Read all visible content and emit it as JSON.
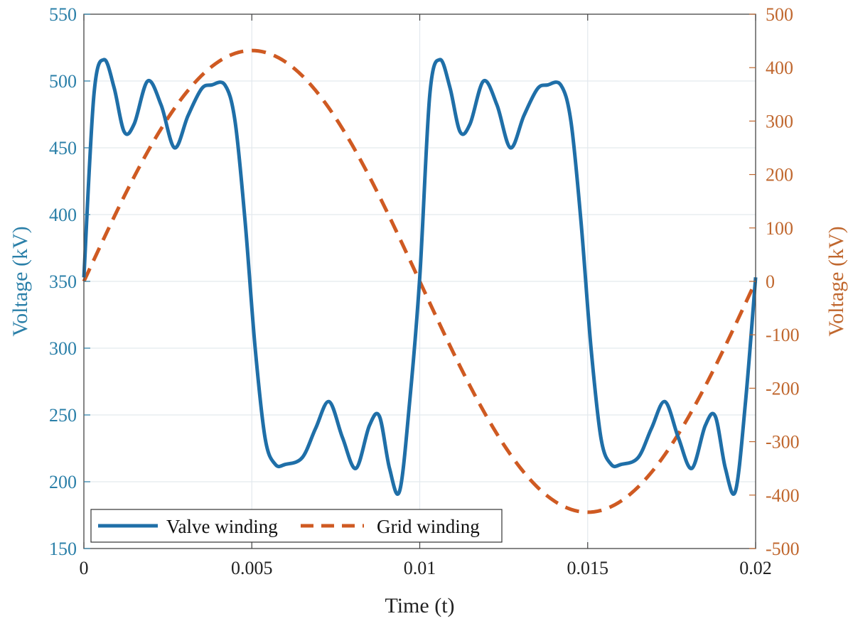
{
  "colors": {
    "left_axis": "#2a7fa8",
    "right_axis": "#c0672e",
    "valve_line": "#1f6fa8",
    "grid_line": "#cf5a22",
    "gridlines": "#e3e9ee",
    "frame": "#444444"
  },
  "chart_data": {
    "type": "line",
    "xlabel": "Time (t)",
    "ylabel_left": "Voltage (kV)",
    "ylabel_right": "Voltage (kV)",
    "xlim": [
      0,
      0.02
    ],
    "ylim_left": [
      150,
      550
    ],
    "ylim_right": [
      -500,
      500
    ],
    "x_ticks": [
      "0",
      "0.005",
      "0.01",
      "0.015",
      "0.02"
    ],
    "y_ticks_left": [
      "150",
      "200",
      "250",
      "300",
      "350",
      "400",
      "450",
      "500",
      "550"
    ],
    "y_ticks_right": [
      "-500",
      "-400",
      "-300",
      "-200",
      "-100",
      "0",
      "100",
      "200",
      "300",
      "400",
      "500"
    ],
    "grid": true,
    "legend": {
      "placement": "bottom-left",
      "entries": [
        "Valve winding",
        "Grid winding"
      ]
    },
    "series": [
      {
        "name": "Valve winding",
        "axis": "left",
        "style": "solid",
        "x": [
          0,
          0.0003,
          0.0006,
          0.0009,
          0.0012,
          0.0015,
          0.0019,
          0.0023,
          0.0027,
          0.0031,
          0.0035,
          0.0038,
          0.0042,
          0.0045,
          0.0048,
          0.0051,
          0.0054,
          0.0057,
          0.006,
          0.0065,
          0.0069,
          0.0073,
          0.0077,
          0.0081,
          0.0085,
          0.0088,
          0.0091,
          0.0094,
          0.0097,
          0.01,
          0.0103,
          0.0106,
          0.0109,
          0.0112,
          0.0115,
          0.0119,
          0.0123,
          0.0127,
          0.0131,
          0.0135,
          0.0138,
          0.0142,
          0.0145,
          0.0148,
          0.0151,
          0.0154,
          0.0157,
          0.016,
          0.0165,
          0.0169,
          0.0173,
          0.0177,
          0.0181,
          0.0185,
          0.0188,
          0.0191,
          0.0194,
          0.0197,
          0.02
        ],
        "y": [
          353,
          490,
          516,
          495,
          462,
          468,
          500,
          482,
          450,
          474,
          494,
          497,
          497,
          470,
          395,
          300,
          232,
          213,
          213,
          218,
          240,
          260,
          233,
          210,
          242,
          249,
          210,
          193,
          260,
          353,
          490,
          516,
          495,
          462,
          468,
          500,
          482,
          450,
          474,
          494,
          497,
          497,
          470,
          395,
          300,
          232,
          213,
          213,
          218,
          240,
          260,
          233,
          210,
          242,
          249,
          210,
          193,
          260,
          353
        ]
      },
      {
        "name": "Grid winding",
        "axis": "right",
        "style": "dashed",
        "amplitude": 432,
        "x": [
          0,
          0.001,
          0.002,
          0.003,
          0.004,
          0.005,
          0.006,
          0.007,
          0.008,
          0.009,
          0.01,
          0.011,
          0.012,
          0.013,
          0.014,
          0.015,
          0.016,
          0.017,
          0.018,
          0.019,
          0.02
        ],
        "y": [
          0,
          134,
          254,
          349,
          411,
          432,
          411,
          349,
          254,
          134,
          0,
          -134,
          -254,
          -349,
          -411,
          -432,
          -411,
          -349,
          -254,
          -134,
          0
        ]
      }
    ]
  }
}
